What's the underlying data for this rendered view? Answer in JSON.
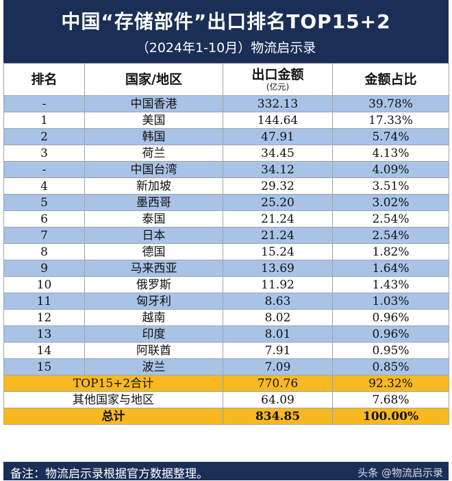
{
  "title": {
    "main": "中国“存储部件”出口排名TOP15+2",
    "sub": "（2024年1-10月）物流启示录"
  },
  "headers": {
    "rank": "排名",
    "country": "国家/地区",
    "amount": "出口金额",
    "amount_unit": "(亿元)",
    "share": "金额占比"
  },
  "rows": [
    {
      "rank": "-",
      "country": "中国香港",
      "amount": "332.13",
      "share": "39.78%"
    },
    {
      "rank": "1",
      "country": "美国",
      "amount": "144.64",
      "share": "17.33%"
    },
    {
      "rank": "2",
      "country": "韩国",
      "amount": "47.91",
      "share": "5.74%"
    },
    {
      "rank": "3",
      "country": "荷兰",
      "amount": "34.45",
      "share": "4.13%"
    },
    {
      "rank": "-",
      "country": "中国台湾",
      "amount": "34.12",
      "share": "4.09%"
    },
    {
      "rank": "4",
      "country": "新加坡",
      "amount": "29.32",
      "share": "3.51%"
    },
    {
      "rank": "5",
      "country": "墨西哥",
      "amount": "25.20",
      "share": "3.02%"
    },
    {
      "rank": "6",
      "country": "泰国",
      "amount": "21.24",
      "share": "2.54%"
    },
    {
      "rank": "7",
      "country": "日本",
      "amount": "21.24",
      "share": "2.54%"
    },
    {
      "rank": "8",
      "country": "德国",
      "amount": "15.24",
      "share": "1.82%"
    },
    {
      "rank": "9",
      "country": "马来西亚",
      "amount": "13.69",
      "share": "1.64%"
    },
    {
      "rank": "10",
      "country": "俄罗斯",
      "amount": "11.92",
      "share": "1.43%"
    },
    {
      "rank": "11",
      "country": "匈牙利",
      "amount": "8.63",
      "share": "1.03%"
    },
    {
      "rank": "12",
      "country": "越南",
      "amount": "8.02",
      "share": "0.96%"
    },
    {
      "rank": "13",
      "country": "印度",
      "amount": "8.01",
      "share": "0.96%"
    },
    {
      "rank": "14",
      "country": "阿联酋",
      "amount": "7.91",
      "share": "0.95%"
    },
    {
      "rank": "15",
      "country": "波兰",
      "amount": "7.09",
      "share": "0.85%"
    }
  ],
  "summary": {
    "top_label": "TOP15+2合计",
    "top_amount": "770.76",
    "top_share": "92.32%",
    "other_label": "其他国家与地区",
    "other_amount": "64.09",
    "other_share": "7.68%",
    "total_label": "总计",
    "total_amount": "834.85",
    "total_share": "100.00%"
  },
  "footer": {
    "note": "备注：物流启示录根据官方数据整理。",
    "watermark": "头条 @物流启示录"
  },
  "colors": {
    "header_band": "#1b2f56",
    "row_band": "#a8c3e6",
    "summary_gold": "#f7b91f"
  }
}
